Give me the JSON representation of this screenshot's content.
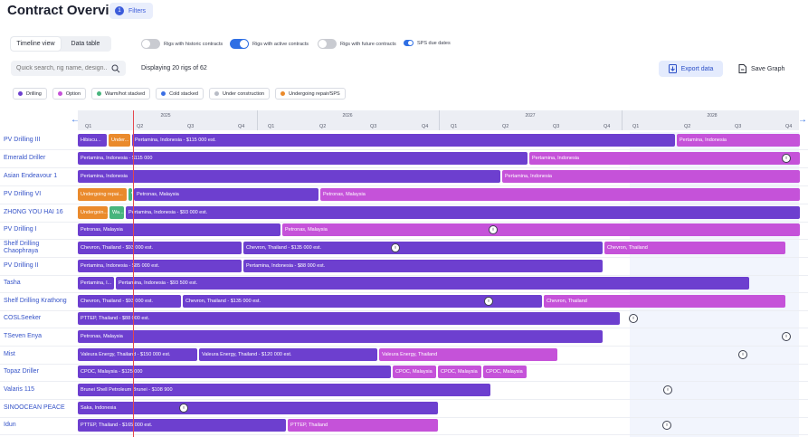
{
  "header": {
    "title": "Contract Overview",
    "filters_count": "1",
    "filters_label": "Filters"
  },
  "views": {
    "timeline": "Timeline view",
    "table": "Data table"
  },
  "toggles": {
    "historic": "Rigs with historic contracts",
    "active": "Rigs with active contracts",
    "future": "Rigs with future contracts",
    "sps": "SPS due dates"
  },
  "search": {
    "placeholder": "Quick search, rig name, design..."
  },
  "displaying": "Displaying 20 rigs of 62",
  "actions": {
    "export": "Export data",
    "save": "Save Graph"
  },
  "legend": [
    {
      "label": "Drilling",
      "color": "#6d3fcf"
    },
    {
      "label": "Option",
      "color": "#c552d9"
    },
    {
      "label": "Warm/hot stacked",
      "color": "#47b57d"
    },
    {
      "label": "Cold stacked",
      "color": "#3b6fe4"
    },
    {
      "label": "Under construction",
      "color": "#b8bcc6"
    },
    {
      "label": "Undergoing repair/SPS",
      "color": "#ea8a2c"
    }
  ],
  "timeline": {
    "years": [
      "2025",
      "2026",
      "2027",
      "2028"
    ],
    "quarters": [
      "Q1",
      "Q2",
      "Q3",
      "Q4",
      "Q1",
      "Q2",
      "Q3",
      "Q4",
      "Q1",
      "Q2",
      "Q3",
      "Q4",
      "Q1",
      "Q2",
      "Q3",
      "Q4"
    ]
  },
  "rows": [
    {
      "name": "PV Drilling III",
      "bars": [
        {
          "type": "drilling",
          "label": "Hibiscu..."
        },
        {
          "type": "repair",
          "label": "Under..."
        },
        {
          "type": "drilling",
          "label": "Pertamina, Indonesia - $115 000 est."
        },
        {
          "type": "option",
          "label": "Pertamina, Indonesia"
        }
      ],
      "markers": []
    },
    {
      "name": "Emerald Driller",
      "bars": [
        {
          "type": "drilling",
          "label": "Pertamina, Indonesia - $115 000"
        },
        {
          "type": "option",
          "label": "Pertamina, Indonesia"
        }
      ],
      "markers": [
        1
      ]
    },
    {
      "name": "Asian Endeavour 1",
      "bars": [
        {
          "type": "drilling",
          "label": "Pertamina, Indonesia"
        },
        {
          "type": "option",
          "label": "Pertamina, Indonesia"
        }
      ],
      "markers": []
    },
    {
      "name": "PV Drilling VI",
      "bars": [
        {
          "type": "repair",
          "label": "Undergoing repai..."
        },
        {
          "type": "warm",
          "label": "V"
        },
        {
          "type": "drilling",
          "label": "Petronas, Malaysia"
        },
        {
          "type": "option",
          "label": "Petronas, Malaysia"
        }
      ],
      "markers": []
    },
    {
      "name": "ZHONG YOU HAI 16",
      "bars": [
        {
          "type": "repair",
          "label": "Undergoin..."
        },
        {
          "type": "warm",
          "label": "Wa..."
        },
        {
          "type": "drilling",
          "label": "Pertamina, Indonesia - $93 000 est."
        }
      ],
      "markers": []
    },
    {
      "name": "PV Drilling I",
      "bars": [
        {
          "type": "drilling",
          "label": "Petronas, Malaysia"
        },
        {
          "type": "option",
          "label": "Petronas, Malaysia"
        }
      ],
      "markers": [
        1
      ]
    },
    {
      "name": "Shelf Drilling Chaophraya",
      "bars": [
        {
          "type": "drilling",
          "label": "Chevron, Thailand - $93 000 est."
        },
        {
          "type": "drilling",
          "label": "Chevron, Thailand - $135 000 est."
        },
        {
          "type": "option",
          "label": "Chevron, Thailand"
        }
      ],
      "markers": [
        1
      ]
    },
    {
      "name": "PV Drilling II",
      "bars": [
        {
          "type": "drilling",
          "label": "Pertamina, Indonesia - $85 000 est."
        },
        {
          "type": "drilling",
          "label": "Pertamina, Indonesia - $88 000 est."
        }
      ],
      "markers": []
    },
    {
      "name": "Tasha",
      "bars": [
        {
          "type": "drilling",
          "label": "Pertamina, I..."
        },
        {
          "type": "drilling",
          "label": "Pertamina, Indonesia - $93 500 est."
        }
      ],
      "markers": []
    },
    {
      "name": "Shelf Drilling Krathong",
      "bars": [
        {
          "type": "drilling",
          "label": "Chevron, Thailand - $93 000 est."
        },
        {
          "type": "drilling",
          "label": "Chevron, Thailand - $135 000 est."
        },
        {
          "type": "option",
          "label": "Chevron, Thailand"
        }
      ],
      "markers": [
        1
      ]
    },
    {
      "name": "COSLSeeker",
      "bars": [
        {
          "type": "drilling",
          "label": "PTTEP, Thailand - $88 000 est."
        }
      ],
      "markers": [
        1
      ]
    },
    {
      "name": "TSeven Enya",
      "bars": [
        {
          "type": "drilling",
          "label": "Petronas, Malaysia"
        }
      ],
      "markers": [
        1
      ]
    },
    {
      "name": "Mist",
      "bars": [
        {
          "type": "drilling",
          "label": "Valeura Energy, Thailand - $150 000 est."
        },
        {
          "type": "drilling",
          "label": "Valeura Energy, Thailand - $120 000 est."
        },
        {
          "type": "option",
          "label": "Valeura Energy, Thailand"
        }
      ],
      "markers": [
        1
      ]
    },
    {
      "name": "Topaz Driller",
      "bars": [
        {
          "type": "drilling",
          "label": "CPOC, Malaysia - $125 000"
        },
        {
          "type": "option",
          "label": "CPOC, Malaysia"
        },
        {
          "type": "option",
          "label": "CPOC, Malaysia"
        },
        {
          "type": "option",
          "label": "CPOC, Malaysia"
        }
      ],
      "markers": []
    },
    {
      "name": "Valaris 115",
      "bars": [
        {
          "type": "drilling",
          "label": "Brunei Shell Petroleum  Brunei - $108 900"
        }
      ],
      "markers": [
        1
      ]
    },
    {
      "name": "SINOOCEAN PEACE",
      "bars": [
        {
          "type": "drilling",
          "label": "Saka, Indonesia"
        }
      ],
      "markers": [
        1
      ]
    },
    {
      "name": "Idun",
      "bars": [
        {
          "type": "drilling",
          "label": "PTTEP, Thailand - $165 000 est."
        },
        {
          "type": "option",
          "label": "PTTEP, Thailand"
        }
      ],
      "markers": [
        1
      ]
    }
  ]
}
